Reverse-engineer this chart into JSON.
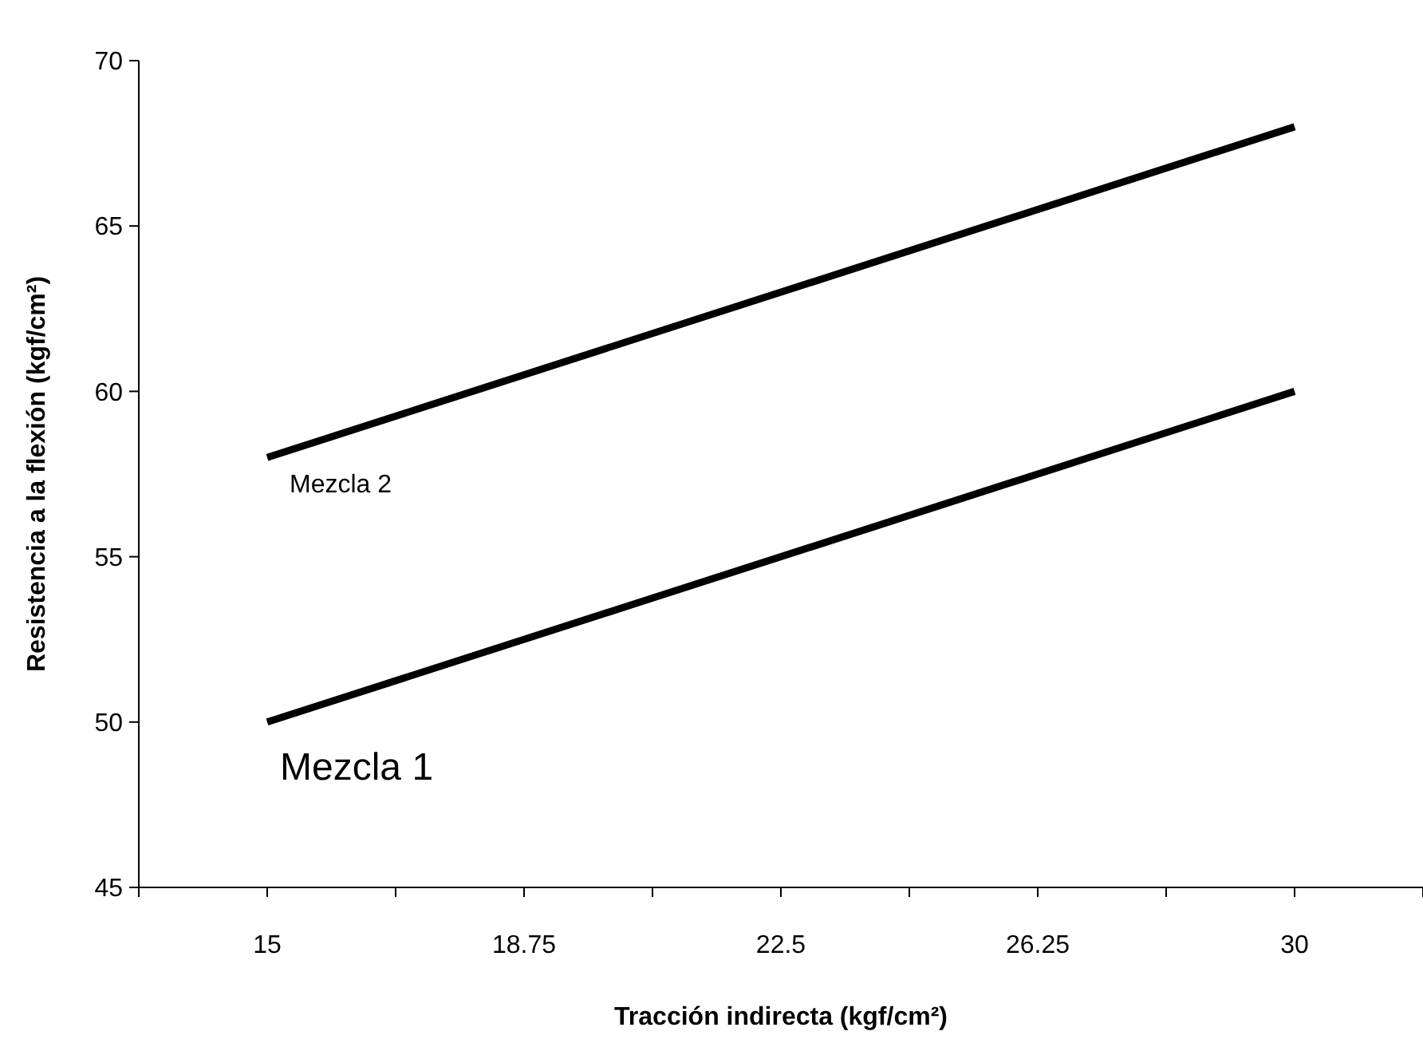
{
  "chart_data": {
    "type": "line",
    "xlabel": "Tracción indirecta (kgf/cm²)",
    "ylabel": "Resistencia a la flexión (kgf/cm²)",
    "x": [
      15,
      30
    ],
    "series": [
      {
        "name": "Mezcla 1",
        "color": "#000000",
        "values": [
          50,
          60
        ]
      },
      {
        "name": "Mezcla 2",
        "color": "#000000",
        "values": [
          58,
          68
        ]
      }
    ],
    "xlim": [
      13.125,
      31.875
    ],
    "xticks": [
      {
        "value": 13.125,
        "label": null
      },
      15,
      {
        "value": 16.875,
        "label": null
      },
      18.75,
      {
        "value": 20.625,
        "label": null
      },
      22.5,
      {
        "value": 24.375,
        "label": null
      },
      26.25,
      {
        "value": 28.125,
        "label": null
      },
      30,
      {
        "value": 31.875,
        "label": null
      }
    ],
    "ylim": [
      45,
      70
    ],
    "yticks": [
      45,
      50,
      55,
      60,
      65,
      70
    ],
    "grid": false,
    "marker": "none",
    "line_style": "solid",
    "legend": false
  }
}
